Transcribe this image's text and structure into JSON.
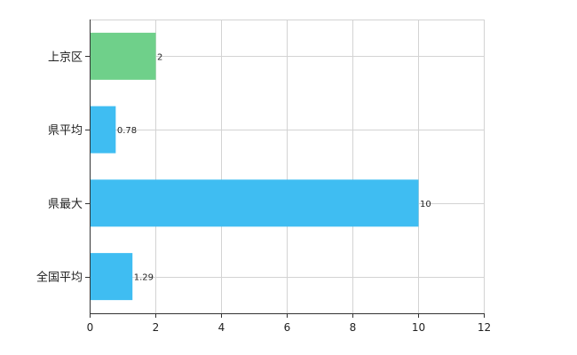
{
  "chart_data": {
    "type": "bar",
    "orientation": "horizontal",
    "categories": [
      "上京区",
      "県平均",
      "県最大",
      "全国平均"
    ],
    "values": [
      2,
      0.78,
      10,
      1.29
    ],
    "value_labels": [
      "2",
      "0.78",
      "10",
      "1.29"
    ],
    "bar_colors": [
      "#6fd08a",
      "#3fbdf2",
      "#3fbdf2",
      "#3fbdf2"
    ],
    "xlim": [
      0,
      12
    ],
    "xticks": [
      0,
      2,
      4,
      6,
      8,
      10,
      12
    ],
    "grid": true,
    "legend": "none"
  }
}
